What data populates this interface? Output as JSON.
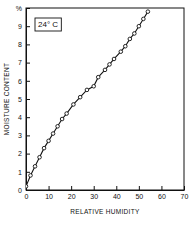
{
  "chart_data": {
    "type": "line",
    "x_label": "RELATIVE HUMIDITY",
    "y_label": "MOISTURE CONTENT",
    "annotation": "24° C",
    "x": [
      0,
      2,
      4,
      6,
      8,
      10,
      12,
      14,
      16,
      18,
      21,
      24,
      27,
      30,
      32,
      35,
      37,
      39,
      42,
      44,
      46,
      48,
      50,
      52,
      54
    ],
    "series": [
      {
        "name": "24° C",
        "color": "#111111",
        "marker": "circle",
        "line_style": "solid",
        "values": [
          0.2,
          0.8,
          1.3,
          1.8,
          2.3,
          2.7,
          3.1,
          3.5,
          3.9,
          4.2,
          4.7,
          5.1,
          5.5,
          5.7,
          6.2,
          6.6,
          6.9,
          7.2,
          7.6,
          7.9,
          8.3,
          8.6,
          9.0,
          9.4,
          9.8
        ]
      }
    ],
    "xlim": [
      0,
      70
    ],
    "xticks": [
      0,
      10,
      20,
      30,
      40,
      50,
      60,
      70
    ],
    "ylim": [
      0,
      10
    ],
    "yticks": [
      0,
      1,
      2,
      3,
      4,
      5,
      6,
      7,
      8,
      9,
      {
        "value": 10,
        "label": "%"
      }
    ],
    "grid": false
  }
}
